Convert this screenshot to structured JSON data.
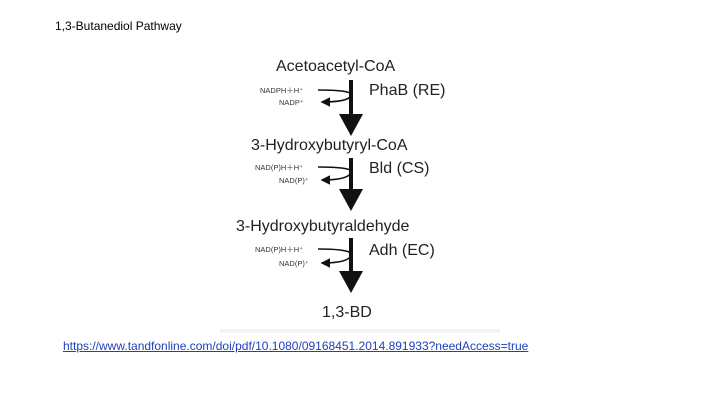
{
  "slide": {
    "title": "1,3-Butanediol Pathway",
    "source_link": "https://www.tandfonline.com/doi/pdf/10.1080/09168451.2014.891933?needAccess=true"
  },
  "pathway": {
    "compounds": [
      "Acetoacetyl-CoA",
      "3-Hydroxybutyryl-CoA",
      "3-Hydroxybutyraldehyde",
      "1,3-BD"
    ],
    "steps": [
      {
        "enzyme": "PhaB (RE)",
        "cofactor_in": "NADPH＋H⁺",
        "cofactor_out": "NADP⁺"
      },
      {
        "enzyme": "Bld (CS)",
        "cofactor_in": "NAD(P)H＋H⁺",
        "cofactor_out": "NAD(P)⁺"
      },
      {
        "enzyme": "Adh (EC)",
        "cofactor_in": "NAD(P)H＋H⁺",
        "cofactor_out": "NAD(P)⁺"
      }
    ]
  },
  "colors": {
    "text": "#222222",
    "arrow": "#111111",
    "link": "#1f3fbf"
  }
}
